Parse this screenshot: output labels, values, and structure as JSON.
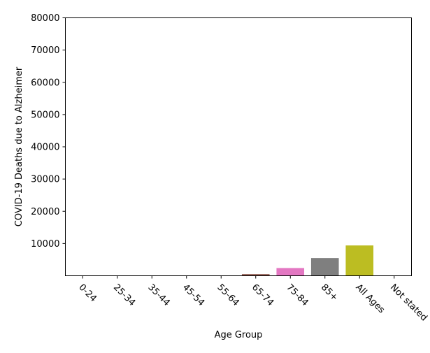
{
  "chart_data": {
    "type": "bar",
    "xlabel": "Age Group",
    "ylabel": "COVID-19 Deaths due to Alzheimer",
    "categories": [
      "0-24",
      "25-34",
      "35-44",
      "45-54",
      "55-64",
      "65-74",
      "75-84",
      "85+",
      "All Ages",
      "Not stated"
    ],
    "values": [
      0,
      0,
      0,
      0,
      0,
      500,
      2400,
      5500,
      9400,
      0
    ],
    "colors": [
      "#1f77b4",
      "#ff7f0e",
      "#2ca02c",
      "#d62728",
      "#9467bd",
      "#8c564b",
      "#e377c2",
      "#7f7f7f",
      "#bcbd22",
      "#17becf"
    ],
    "ylim": [
      0,
      80000
    ],
    "yticks": [
      10000,
      20000,
      30000,
      40000,
      50000,
      60000,
      70000,
      80000
    ],
    "ytick_labels": [
      "10000",
      "20000",
      "30000",
      "40000",
      "50000",
      "60000",
      "70000",
      "80000"
    ],
    "grid": false,
    "xtick_rotation": -45
  }
}
